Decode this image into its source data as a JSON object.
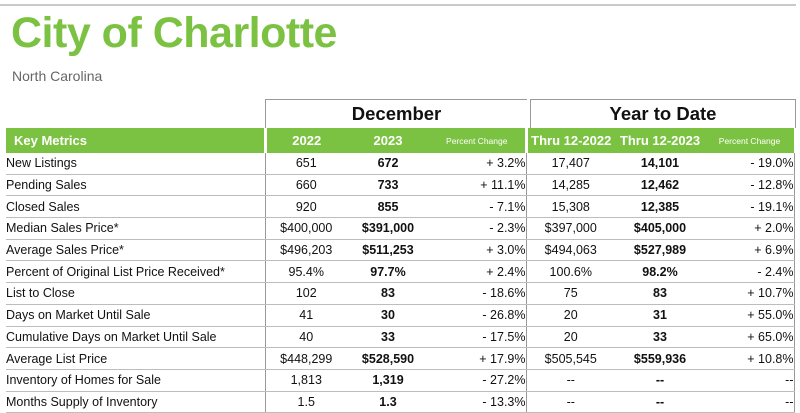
{
  "header": {
    "title": "City of Charlotte",
    "subtitle": "North Carolina"
  },
  "groups": {
    "december": "December",
    "ytd": "Year to Date"
  },
  "columns": {
    "metric": "Key Metrics",
    "dec_prev": "2022",
    "dec_cur": "2023",
    "dec_pct": "Percent Change",
    "ytd_prev": "Thru 12-2022",
    "ytd_cur": "Thru 12-2023",
    "ytd_pct": "Percent Change"
  },
  "rows": [
    [
      "New Listings",
      "651",
      "672",
      "+ 3.2%",
      "17,407",
      "14,101",
      "- 19.0%"
    ],
    [
      "Pending Sales",
      "660",
      "733",
      "+ 11.1%",
      "14,285",
      "12,462",
      "- 12.8%"
    ],
    [
      "Closed Sales",
      "920",
      "855",
      "- 7.1%",
      "15,308",
      "12,385",
      "- 19.1%"
    ],
    [
      "Median Sales Price*",
      "$400,000",
      "$391,000",
      "- 2.3%",
      "$397,000",
      "$405,000",
      "+ 2.0%"
    ],
    [
      "Average Sales Price*",
      "$496,203",
      "$511,253",
      "+ 3.0%",
      "$494,063",
      "$527,989",
      "+ 6.9%"
    ],
    [
      "Percent of Original List Price Received*",
      "95.4%",
      "97.7%",
      "+ 2.4%",
      "100.6%",
      "98.2%",
      "- 2.4%"
    ],
    [
      "List to Close",
      "102",
      "83",
      "- 18.6%",
      "75",
      "83",
      "+ 10.7%"
    ],
    [
      "Days on Market Until Sale",
      "41",
      "30",
      "- 26.8%",
      "20",
      "31",
      "+ 55.0%"
    ],
    [
      "Cumulative Days on Market Until Sale",
      "40",
      "33",
      "- 17.5%",
      "20",
      "33",
      "+ 65.0%"
    ],
    [
      "Average List Price",
      "$448,299",
      "$528,590",
      "+ 17.9%",
      "$505,545",
      "$559,936",
      "+ 10.8%"
    ],
    [
      "Inventory of Homes for Sale",
      "1,813",
      "1,319",
      "- 27.2%",
      "--",
      "--",
      "--"
    ],
    [
      "Months Supply of Inventory",
      "1.5",
      "1.3",
      "- 13.3%",
      "--",
      "--",
      "--"
    ]
  ],
  "colors": {
    "accent": "#7cc242",
    "subtitle": "#666666"
  }
}
